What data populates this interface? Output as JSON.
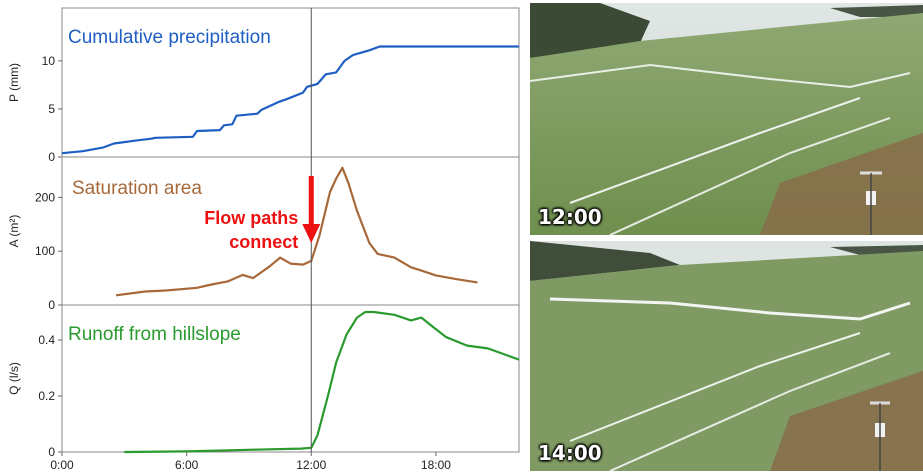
{
  "chart_data": {
    "type": "line",
    "x_ticks": [
      "0:00",
      "6:00",
      "12:00",
      "18:00"
    ],
    "x_range_hours": [
      0,
      22
    ],
    "reference_line_hours": 12,
    "panels": [
      {
        "id": "precip",
        "ylabel": "P (mm)",
        "ylim": [
          0,
          15.5
        ],
        "yticks": [
          0,
          5,
          10
        ],
        "series": [
          {
            "name": "Cumulative precipitation",
            "color": "#1f5fc4",
            "x": [
              0,
              1,
              2,
              2.5,
              3.5,
              4.3,
              4.5,
              6.3,
              6.5,
              7.6,
              7.8,
              8.2,
              8.4,
              9.4,
              9.6,
              10.4,
              10.8,
              11.6,
              11.8,
              12.3,
              12.7,
              13.2,
              13.6,
              14,
              14.8,
              15.3,
              16,
              22
            ],
            "y": [
              0.4,
              0.6,
              1.0,
              1.4,
              1.7,
              1.9,
              2.0,
              2.1,
              2.7,
              2.8,
              3.3,
              3.4,
              4.3,
              4.5,
              4.9,
              5.7,
              6.0,
              6.7,
              7.3,
              7.6,
              8.6,
              8.8,
              10.0,
              10.6,
              11.1,
              11.5,
              11.5,
              11.5
            ]
          }
        ]
      },
      {
        "id": "saturation",
        "ylabel": "A (m²)",
        "ylim": [
          0,
          275
        ],
        "yticks": [
          0,
          100,
          200
        ],
        "series": [
          {
            "name": "Saturation area",
            "color": "#a8693a",
            "x": [
              2.6,
              4,
              5,
              6.5,
              7.2,
              8,
              8.7,
              9.2,
              10,
              10.5,
              11,
              11.6,
              12,
              12.4,
              12.9,
              13.2,
              13.5,
              13.8,
              14.2,
              14.8,
              15.2,
              16,
              16.8,
              17.3,
              18,
              19,
              20
            ],
            "y": [
              18,
              25,
              27,
              32,
              38,
              44,
              56,
              50,
              72,
              88,
              77,
              75,
              82,
              130,
              210,
              235,
              255,
              225,
              175,
              115,
              95,
              88,
              70,
              64,
              55,
              48,
              42
            ]
          }
        ],
        "annotation": {
          "text_line1": "Flow paths",
          "text_line2": "connect",
          "color": "#ee1111",
          "at_hours": 12
        }
      },
      {
        "id": "runoff",
        "ylabel": "Q (l/s)",
        "ylim": [
          0,
          0.525
        ],
        "yticks": [
          0,
          0.2,
          0.4
        ],
        "series": [
          {
            "name": "Runoff from hillslope",
            "color": "#2a9a2e",
            "x": [
              3,
              6,
              9,
              11.5,
              12,
              12.3,
              12.8,
              13.2,
              13.7,
              14.2,
              14.6,
              15,
              16,
              16.8,
              17.3,
              17.8,
              18.5,
              19.5,
              20.5,
              22
            ],
            "y": [
              0,
              0.002,
              0.008,
              0.012,
              0.015,
              0.06,
              0.2,
              0.32,
              0.42,
              0.48,
              0.5,
              0.5,
              0.49,
              0.47,
              0.48,
              0.45,
              0.41,
              0.38,
              0.37,
              0.33
            ]
          }
        ]
      }
    ]
  },
  "photos": [
    {
      "label": "12:00"
    },
    {
      "label": "14:00"
    }
  ]
}
